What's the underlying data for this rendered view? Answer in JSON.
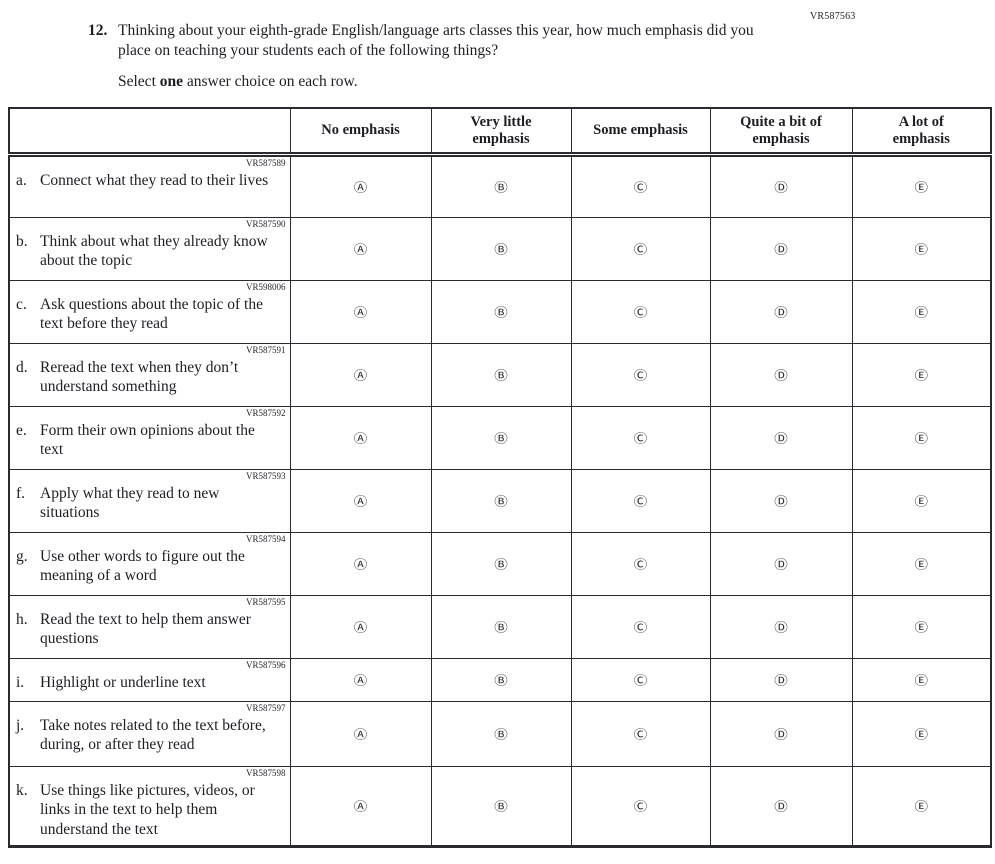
{
  "page": {
    "form_code": "VR587563",
    "question": {
      "number": "12.",
      "text": "Thinking about your eighth-grade English/language arts classes this year, how much emphasis did you place on teaching your students each of the following things?",
      "instruction": {
        "prefix": "Select ",
        "bold": "one",
        "suffix": " answer choice on each row."
      }
    }
  },
  "table": {
    "column_headers": [
      "No emphasis",
      "Very little\nemphasis",
      "Some emphasis",
      "Quite a bit of\nemphasis",
      "A lot of\nemphasis"
    ],
    "option_glyphs": [
      "Ⓐ",
      "Ⓑ",
      "Ⓒ",
      "Ⓓ",
      "Ⓔ"
    ],
    "option_names": [
      "no-emphasis",
      "very-little-emphasis",
      "some-emphasis",
      "quite-a-bit-of-emphasis",
      "a-lot-of-emphasis"
    ],
    "rows": [
      {
        "code": "VR587589",
        "letter": "a.",
        "label": "Connect what they read to their lives"
      },
      {
        "code": "VR587590",
        "letter": "b.",
        "label": "Think about what they already know about the topic"
      },
      {
        "code": "VR598006",
        "letter": "c.",
        "label": "Ask questions about the topic of the text before they read"
      },
      {
        "code": "VR587591",
        "letter": "d.",
        "label": "Reread the text when they don’t understand something"
      },
      {
        "code": "VR587592",
        "letter": "e.",
        "label": "Form their own opinions about the text"
      },
      {
        "code": "VR587593",
        "letter": "f.",
        "label": "Apply what they read to new situations"
      },
      {
        "code": "VR587594",
        "letter": "g.",
        "label": "Use other words to figure out the meaning of a word"
      },
      {
        "code": "VR587595",
        "letter": "h.",
        "label": "Read the text to help them answer questions"
      },
      {
        "code": "VR587596",
        "letter": "i.",
        "label": "Highlight or underline text"
      },
      {
        "code": "VR587597",
        "letter": "j.",
        "label": "Take notes related to the text before, during, or after they read"
      },
      {
        "code": "VR587598",
        "letter": "k.",
        "label": "Use things like pictures, videos, or links in the text to help them understand the text"
      }
    ]
  }
}
